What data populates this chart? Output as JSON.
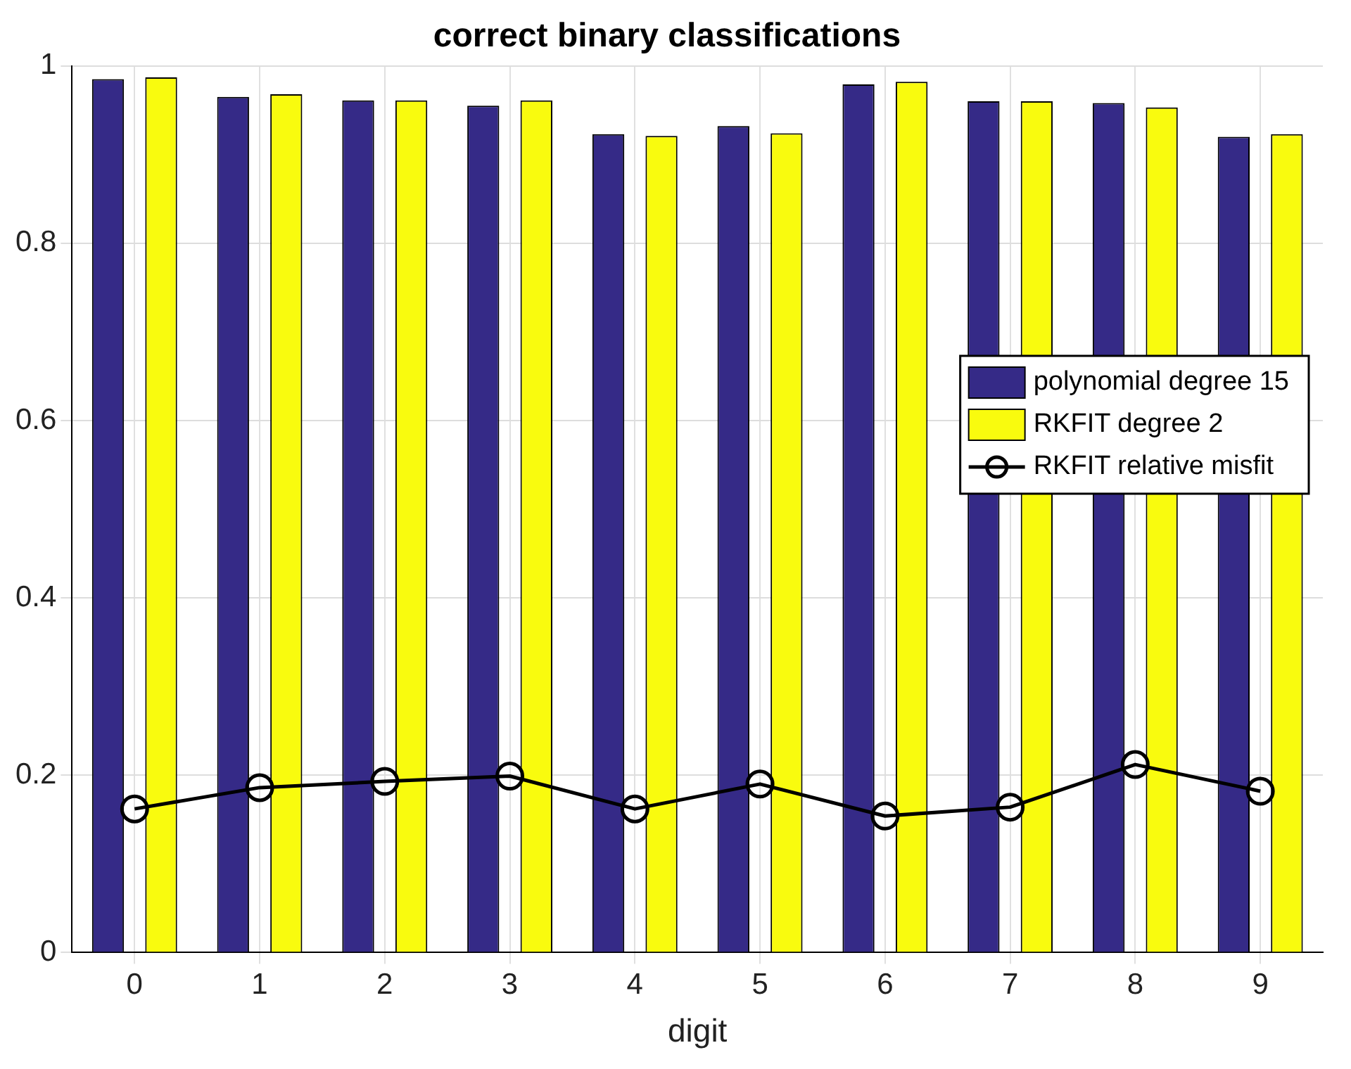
{
  "chart_data": {
    "type": "bar",
    "title": "correct binary classifications",
    "xlabel": "digit",
    "categories": [
      "0",
      "1",
      "2",
      "3",
      "4",
      "5",
      "6",
      "7",
      "8",
      "9"
    ],
    "series": [
      {
        "name": "polynomial degree 15",
        "color": "#352a87",
        "values": [
          0.985,
          0.965,
          0.961,
          0.955,
          0.923,
          0.932,
          0.979,
          0.96,
          0.958,
          0.92
        ]
      },
      {
        "name": "RKFIT degree 2",
        "color": "#f9fb0e",
        "values": [
          0.987,
          0.968,
          0.961,
          0.961,
          0.921,
          0.924,
          0.982,
          0.96,
          0.953,
          0.923
        ]
      },
      {
        "name": "RKFIT relative misfit",
        "type": "line",
        "color": "#000000",
        "marker": "circle",
        "values": [
          0.162,
          0.186,
          0.193,
          0.199,
          0.162,
          0.19,
          0.154,
          0.164,
          0.212,
          0.182
        ]
      }
    ],
    "ylim": [
      0,
      1
    ],
    "yticks": [
      0,
      0.2,
      0.4,
      0.6,
      0.8,
      1
    ],
    "grid": true,
    "legend": "right"
  }
}
